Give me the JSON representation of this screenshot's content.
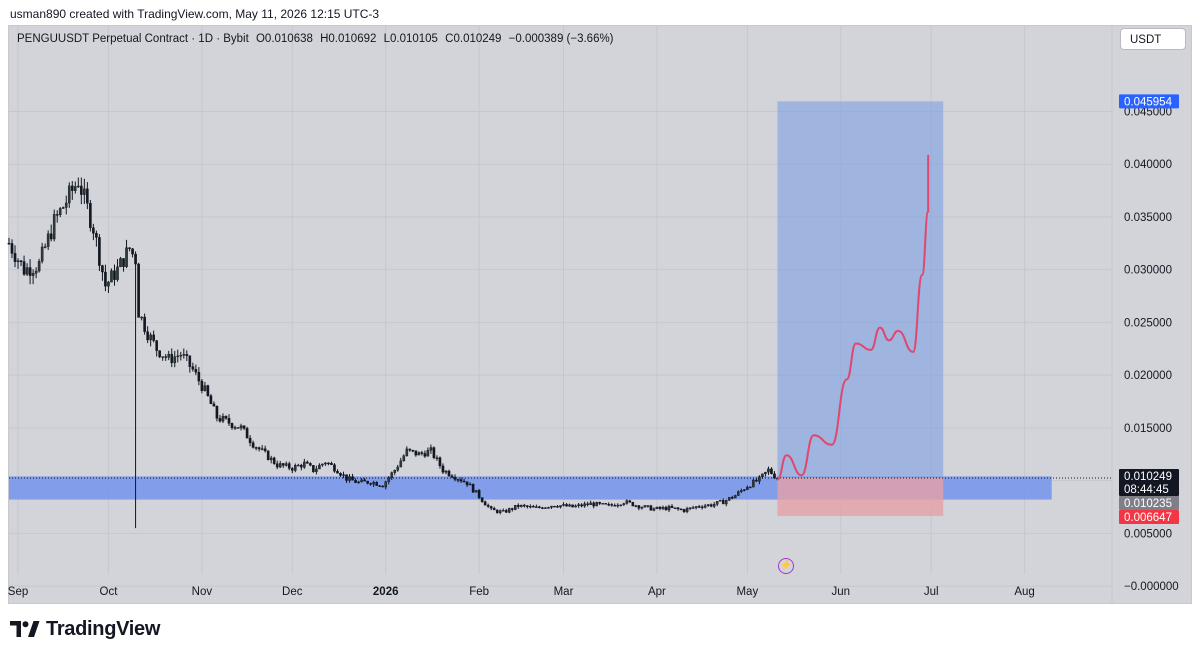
{
  "credit": "usman890 created with TradingView.com, May 11, 2026 12:15 UTC-3",
  "legend": {
    "symbol": "PENGUUSDT Perpetual Contract · 1D · Bybit",
    "open": "O0.010638",
    "high": "H0.010692",
    "low": "L0.010105",
    "close": "C0.010249",
    "change": "−0.000389 (−3.66%)"
  },
  "currency_button": "USDT",
  "footer_brand": "TradingView",
  "icons": {
    "logo": "tradingview-logo-icon",
    "lightning": "lightning-icon"
  },
  "colors": {
    "background": "#d3d4d9",
    "candle": "#131722",
    "target_zone": "#7f9fe0",
    "stop_zone": "#e6a0a6",
    "support_band": "#6b8ef0",
    "projection": "#e0476f",
    "target_label": "#2962ff",
    "stop_label": "#f23645"
  },
  "chart_data": {
    "type": "candlestick",
    "title": "PENGUUSDT Perpetual Contract · 1D · Bybit",
    "y_axis": {
      "ticks": [
        "0.045000",
        "0.040000",
        "0.035000",
        "0.030000",
        "0.025000",
        "0.020000",
        "0.015000",
        "0.010000",
        "0.005000",
        "−0.000000"
      ],
      "tick_values": [
        0.045,
        0.04,
        0.035,
        0.03,
        0.025,
        0.02,
        0.015,
        0.01,
        0.005,
        0
      ],
      "range": [
        -0.0017,
        0.0495
      ]
    },
    "x_axis": {
      "ticks": [
        "Sep",
        "Oct",
        "Nov",
        "Dec",
        "2026",
        "Feb",
        "Mar",
        "Apr",
        "May",
        "Jun",
        "Jul",
        "Aug"
      ],
      "tick_dates": [
        "2025-09-01",
        "2025-10-01",
        "2025-11-01",
        "2025-12-01",
        "2026-01-01",
        "2026-02-01",
        "2026-03-01",
        "2026-04-01",
        "2026-05-01",
        "2026-06-01",
        "2026-07-01",
        "2026-08-01"
      ],
      "range": [
        "2025-08-29",
        "2026-08-30"
      ]
    },
    "price_path": [
      [
        "2025-08-29",
        0.0325
      ],
      [
        "2025-09-03",
        0.03
      ],
      [
        "2025-09-08",
        0.0305
      ],
      [
        "2025-09-13",
        0.0345
      ],
      [
        "2025-09-18",
        0.037
      ],
      [
        "2025-09-21",
        0.0385
      ],
      [
        "2025-09-26",
        0.034
      ],
      [
        "2025-09-30",
        0.0285
      ],
      [
        "2025-10-04",
        0.03
      ],
      [
        "2025-10-08",
        0.032
      ],
      [
        "2025-10-10",
        0.031
      ],
      [
        "2025-10-11",
        0.026
      ],
      [
        "2025-10-14",
        0.024
      ],
      [
        "2025-10-17",
        0.0225
      ],
      [
        "2025-10-21",
        0.0215
      ],
      [
        "2025-10-25",
        0.022
      ],
      [
        "2025-10-29",
        0.0205
      ],
      [
        "2025-11-02",
        0.0185
      ],
      [
        "2025-11-06",
        0.016
      ],
      [
        "2025-11-10",
        0.0155
      ],
      [
        "2025-11-14",
        0.015
      ],
      [
        "2025-11-18",
        0.0135
      ],
      [
        "2025-11-22",
        0.0125
      ],
      [
        "2025-11-26",
        0.0115
      ],
      [
        "2025-12-01",
        0.0112
      ],
      [
        "2025-12-05",
        0.0116
      ],
      [
        "2025-12-08",
        0.011
      ],
      [
        "2025-12-12",
        0.0118
      ],
      [
        "2025-12-16",
        0.011
      ],
      [
        "2025-12-19",
        0.0102
      ],
      [
        "2025-12-23",
        0.0098
      ],
      [
        "2025-12-27",
        0.0099
      ],
      [
        "2025-12-31",
        0.0096
      ],
      [
        "2026-01-04",
        0.011
      ],
      [
        "2026-01-08",
        0.0128
      ],
      [
        "2026-01-12",
        0.0125
      ],
      [
        "2026-01-16",
        0.0128
      ],
      [
        "2026-01-20",
        0.011
      ],
      [
        "2026-01-24",
        0.0104
      ],
      [
        "2026-01-28",
        0.0098
      ],
      [
        "2026-02-01",
        0.0085
      ],
      [
        "2026-02-05",
        0.0072
      ],
      [
        "2026-02-09",
        0.007
      ],
      [
        "2026-02-14",
        0.0076
      ],
      [
        "2026-02-20",
        0.0074
      ],
      [
        "2026-02-26",
        0.0077
      ],
      [
        "2026-03-04",
        0.0075
      ],
      [
        "2026-03-10",
        0.0078
      ],
      [
        "2026-03-16",
        0.0076
      ],
      [
        "2026-03-21",
        0.008
      ],
      [
        "2026-03-26",
        0.0076
      ],
      [
        "2026-03-31",
        0.0073
      ],
      [
        "2026-04-05",
        0.0074
      ],
      [
        "2026-04-10",
        0.0072
      ],
      [
        "2026-04-15",
        0.0076
      ],
      [
        "2026-04-19",
        0.0077
      ],
      [
        "2026-04-23",
        0.008
      ],
      [
        "2026-04-27",
        0.0086
      ],
      [
        "2026-05-01",
        0.0095
      ],
      [
        "2026-05-05",
        0.0101
      ],
      [
        "2026-05-08",
        0.011
      ],
      [
        "2026-05-11",
        0.0102
      ]
    ],
    "projection_path": [
      [
        "2026-05-11",
        0.0101
      ],
      [
        "2026-05-14",
        0.0124
      ],
      [
        "2026-05-19",
        0.0105
      ],
      [
        "2026-05-23",
        0.0143
      ],
      [
        "2026-05-29",
        0.0134
      ],
      [
        "2026-06-03",
        0.0196
      ],
      [
        "2026-06-06",
        0.023
      ],
      [
        "2026-06-11",
        0.0224
      ],
      [
        "2026-06-14",
        0.0245
      ],
      [
        "2026-06-17",
        0.0233
      ],
      [
        "2026-06-20",
        0.0242
      ],
      [
        "2026-06-25",
        0.0222
      ],
      [
        "2026-06-28",
        0.0295
      ],
      [
        "2026-06-30",
        0.0355
      ],
      [
        "2026-06-30",
        0.0408
      ]
    ],
    "target_zone": {
      "x": [
        "2026-05-11",
        "2026-07-05"
      ],
      "y": [
        0.010249,
        0.045954
      ]
    },
    "stop_zone": {
      "x": [
        "2026-05-11",
        "2026-07-05"
      ],
      "y": [
        0.006647,
        0.010249
      ]
    },
    "support_band": {
      "x": [
        "2025-08-29",
        "2026-08-10"
      ],
      "y": [
        0.0082,
        0.0104
      ]
    },
    "price_labels": [
      {
        "text": "0.045954",
        "value": 0.045954,
        "kind": "target"
      },
      {
        "text": "0.010249",
        "value": 0.010249,
        "kind": "last"
      },
      {
        "text": "08:44:45",
        "value": 0.010249,
        "kind": "countdown"
      },
      {
        "text": "0.010235",
        "value": 0.010235,
        "kind": "entry"
      },
      {
        "text": "0.006647",
        "value": 0.006647,
        "kind": "stop"
      }
    ],
    "grid": true,
    "last_price_line": 0.010249
  }
}
